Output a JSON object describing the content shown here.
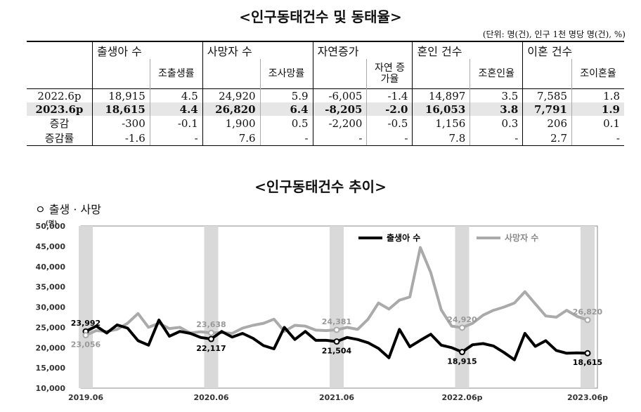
{
  "title": "<인구동태건수 및 동태율>",
  "unit_note": "(단위: 명(건), 인구 1천 명당 명(건), %)",
  "table": {
    "groups": [
      "출생아 수",
      "사망자 수",
      "자연증가",
      "혼인 건수",
      "이혼 건수"
    ],
    "sub_headers": [
      "조출생률",
      "조사망률",
      "자연 증가율",
      "조혼인율",
      "조이혼율"
    ],
    "rows": [
      {
        "label": "2022.6p",
        "values": [
          "18,915",
          "4.5",
          "24,920",
          "5.9",
          "-6,005",
          "-1.4",
          "14,897",
          "3.5",
          "7,585",
          "1.8"
        ]
      },
      {
        "label": "2023.6p",
        "values": [
          "18,615",
          "4.4",
          "26,820",
          "6.4",
          "-8,205",
          "-2.0",
          "16,053",
          "3.8",
          "7,791",
          "1.9"
        ]
      },
      {
        "label": "증감",
        "values": [
          "-300",
          "-0.1",
          "1,900",
          "0.5",
          "-2,200",
          "-0.5",
          "1,156",
          "0.3",
          "206",
          "0.1"
        ]
      },
      {
        "label": "증감률",
        "values": [
          "-1.6",
          "-",
          "7.6",
          "-",
          "-",
          "-",
          "7.8",
          "-",
          "2.7",
          "-"
        ]
      }
    ]
  },
  "chart_title": "<인구동태건수 추이>",
  "chart_subtitle": "ㅇ 출생 · 사망",
  "colors": {
    "births": "#000000",
    "deaths": "#aaaaaa",
    "plot_bg": "#ffffff",
    "band": "#d9d9d9"
  },
  "chart_data": {
    "type": "line",
    "x": [
      "2019.06",
      "2019.07",
      "2019.08",
      "2019.09",
      "2019.10",
      "2019.11",
      "2019.12",
      "2020.01",
      "2020.02",
      "2020.03",
      "2020.04",
      "2020.05",
      "2020.06",
      "2020.07",
      "2020.08",
      "2020.09",
      "2020.10",
      "2020.11",
      "2020.12",
      "2021.01",
      "2021.02",
      "2021.03",
      "2021.04",
      "2021.05",
      "2021.06",
      "2021.07",
      "2021.08",
      "2021.09",
      "2021.10",
      "2021.11",
      "2021.12",
      "2022.01",
      "2022.02",
      "2022.03",
      "2022.04",
      "2022.05",
      "2022.06",
      "2022.07",
      "2022.08",
      "2022.09",
      "2022.10",
      "2022.11",
      "2022.12",
      "2023.01",
      "2023.02",
      "2023.03",
      "2023.04",
      "2023.05",
      "2023.06"
    ],
    "series": [
      {
        "name": "출생아 수",
        "values": [
          23992,
          25300,
          23600,
          25600,
          24800,
          21700,
          20600,
          26800,
          22800,
          24000,
          23500,
          22500,
          22117,
          24000,
          22600,
          23500,
          22300,
          20500,
          19700,
          25000,
          22000,
          24000,
          21800,
          21800,
          21504,
          22500,
          22000,
          21200,
          19800,
          17500,
          24500,
          20200,
          21800,
          23300,
          20600,
          20000,
          18915,
          20700,
          21000,
          20400,
          18800,
          17000,
          23500,
          20300,
          21700,
          19300,
          18600,
          18700,
          18615
        ]
      },
      {
        "name": "사망자 수",
        "values": [
          23056,
          24200,
          24000,
          24500,
          26000,
          28400,
          25000,
          26000,
          24700,
          25000,
          23600,
          23900,
          23638,
          23700,
          23500,
          24800,
          25500,
          26000,
          27000,
          24000,
          25500,
          25300,
          24300,
          24200,
          24381,
          25000,
          24500,
          27000,
          31000,
          29500,
          31700,
          32500,
          44700,
          38500,
          29300,
          25300,
          24920,
          26000,
          28000,
          29200,
          30000,
          31000,
          33800,
          30800,
          27800,
          27500,
          29200,
          27700,
          26820
        ]
      }
    ],
    "annotations": [
      {
        "series": 0,
        "x": "2019.06",
        "label": "23,992"
      },
      {
        "series": 1,
        "x": "2019.06",
        "label": "23,056"
      },
      {
        "series": 0,
        "x": "2020.06",
        "label": "22,117"
      },
      {
        "series": 1,
        "x": "2020.06",
        "label": "23,638"
      },
      {
        "series": 0,
        "x": "2021.06",
        "label": "21,504"
      },
      {
        "series": 1,
        "x": "2021.06",
        "label": "24,381"
      },
      {
        "series": 0,
        "x": "2022.06",
        "label": "18,915"
      },
      {
        "series": 1,
        "x": "2022.06",
        "label": "24,920"
      },
      {
        "series": 0,
        "x": "2023.06",
        "label": "18,615"
      },
      {
        "series": 1,
        "x": "2023.06",
        "label": "26,820"
      }
    ],
    "highlight_x": [
      "2019.06",
      "2020.06",
      "2021.06",
      "2022.06",
      "2023.06"
    ],
    "ylabel": "(명)",
    "ylim": [
      10000,
      50000
    ],
    "yticks": [
      10000,
      15000,
      20000,
      25000,
      30000,
      35000,
      40000,
      45000,
      50000
    ],
    "ytick_labels": [
      "10,000",
      "15,000",
      "20,000",
      "25,000",
      "30,000",
      "35,000",
      "40,000",
      "45,000",
      "50,000"
    ],
    "xticks": [
      "2019.06",
      "2020.06",
      "2021.06",
      "2022.06",
      "2023.06"
    ],
    "xtick_labels": [
      "2019.06",
      "2020.06",
      "2021.06",
      "2022.06p",
      "2023.06p"
    ],
    "legend_position": "top-right",
    "grid": false
  }
}
